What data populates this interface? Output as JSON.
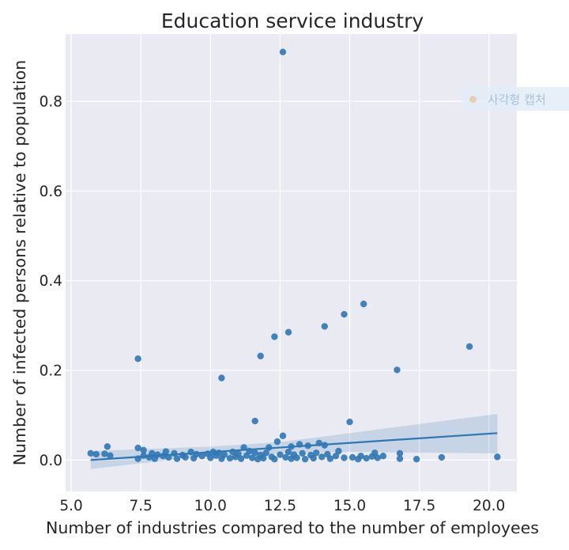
{
  "chart_data": {
    "type": "scatter",
    "title": "Education service industry",
    "xlabel": "Number of industries compared to the number of employees",
    "ylabel": "Number of infected persons relative to population",
    "xlim": [
      4.8,
      21.0
    ],
    "ylim": [
      -0.07,
      0.95
    ],
    "x_ticks": [
      5.0,
      7.5,
      10.0,
      12.5,
      15.0,
      17.5,
      20.0
    ],
    "x_tick_labels": [
      "5.0",
      "7.5",
      "10.0",
      "12.5",
      "15.0",
      "17.5",
      "20.0"
    ],
    "y_ticks": [
      0.0,
      0.2,
      0.4,
      0.6,
      0.8
    ],
    "y_tick_labels": [
      "0.0",
      "0.2",
      "0.4",
      "0.6",
      "0.8"
    ],
    "grid": true,
    "point_color": "#2f77b4",
    "background_color": "#eaeaf2",
    "regression_line": {
      "x": [
        5.7,
        20.3
      ],
      "y": [
        0.0,
        0.06
      ]
    },
    "confidence_band": {
      "x": [
        5.7,
        10.0,
        12.5,
        15.0,
        20.3
      ],
      "lower": [
        -0.02,
        0.01,
        0.015,
        0.018,
        0.015
      ],
      "upper": [
        0.02,
        0.03,
        0.04,
        0.06,
        0.103
      ]
    },
    "points": [
      [
        12.6,
        0.91
      ],
      [
        15.5,
        0.348
      ],
      [
        14.8,
        0.325
      ],
      [
        14.1,
        0.298
      ],
      [
        12.8,
        0.285
      ],
      [
        12.3,
        0.275
      ],
      [
        19.3,
        0.253
      ],
      [
        11.8,
        0.232
      ],
      [
        7.4,
        0.226
      ],
      [
        16.7,
        0.201
      ],
      [
        10.4,
        0.183
      ],
      [
        11.6,
        0.087
      ],
      [
        15.0,
        0.085
      ],
      [
        12.6,
        0.054
      ],
      [
        12.4,
        0.041
      ],
      [
        13.9,
        0.038
      ],
      [
        14.1,
        0.033
      ],
      [
        13.2,
        0.035
      ],
      [
        12.9,
        0.03
      ],
      [
        13.5,
        0.032
      ],
      [
        12.1,
        0.028
      ],
      [
        11.2,
        0.028
      ],
      [
        6.3,
        0.03
      ],
      [
        7.4,
        0.027
      ],
      [
        7.6,
        0.022
      ],
      [
        5.7,
        0.015
      ],
      [
        5.9,
        0.013
      ],
      [
        6.2,
        0.014
      ],
      [
        6.4,
        0.01
      ],
      [
        7.4,
        0.003
      ],
      [
        7.6,
        0.01
      ],
      [
        7.8,
        0.006
      ],
      [
        7.9,
        0.015
      ],
      [
        8.1,
        0.012
      ],
      [
        8.0,
        0.003
      ],
      [
        8.3,
        0.009
      ],
      [
        8.4,
        0.019
      ],
      [
        8.5,
        0.006
      ],
      [
        8.7,
        0.015
      ],
      [
        8.8,
        0.003
      ],
      [
        9.0,
        0.011
      ],
      [
        9.1,
        0.006
      ],
      [
        9.3,
        0.018
      ],
      [
        9.4,
        0.004
      ],
      [
        9.5,
        0.013
      ],
      [
        9.7,
        0.009
      ],
      [
        9.9,
        0.014
      ],
      [
        10.0,
        0.005
      ],
      [
        10.1,
        0.018
      ],
      [
        10.2,
        0.01
      ],
      [
        10.3,
        0.016
      ],
      [
        10.4,
        0.003
      ],
      [
        10.5,
        0.012
      ],
      [
        10.7,
        0.004
      ],
      [
        10.8,
        0.018
      ],
      [
        10.9,
        0.007
      ],
      [
        11.0,
        0.014
      ],
      [
        11.1,
        0.003
      ],
      [
        11.3,
        0.01
      ],
      [
        11.4,
        0.02
      ],
      [
        11.5,
        0.005
      ],
      [
        11.6,
        0.016
      ],
      [
        11.7,
        0.002
      ],
      [
        11.8,
        0.011
      ],
      [
        11.9,
        0.004
      ],
      [
        12.0,
        0.016
      ],
      [
        12.2,
        0.007
      ],
      [
        12.3,
        0.002
      ],
      [
        12.5,
        0.012
      ],
      [
        12.7,
        0.006
      ],
      [
        12.8,
        0.018
      ],
      [
        12.9,
        0.003
      ],
      [
        13.0,
        0.012
      ],
      [
        13.1,
        0.005
      ],
      [
        13.3,
        0.015
      ],
      [
        13.4,
        0.002
      ],
      [
        13.6,
        0.011
      ],
      [
        13.7,
        0.004
      ],
      [
        13.8,
        0.016
      ],
      [
        14.0,
        0.007
      ],
      [
        14.2,
        0.013
      ],
      [
        14.3,
        0.003
      ],
      [
        14.5,
        0.009
      ],
      [
        14.6,
        0.02
      ],
      [
        14.8,
        0.005
      ],
      [
        15.1,
        0.006
      ],
      [
        15.3,
        0.002
      ],
      [
        15.4,
        0.009
      ],
      [
        15.6,
        0.004
      ],
      [
        15.8,
        0.008
      ],
      [
        15.9,
        0.016
      ],
      [
        16.0,
        0.005
      ],
      [
        16.2,
        0.009
      ],
      [
        16.8,
        0.015
      ],
      [
        16.8,
        0.003
      ],
      [
        17.4,
        0.002
      ],
      [
        18.3,
        0.006
      ],
      [
        20.3,
        0.007
      ]
    ]
  },
  "overlay": {
    "label": "사각형 캡처"
  }
}
